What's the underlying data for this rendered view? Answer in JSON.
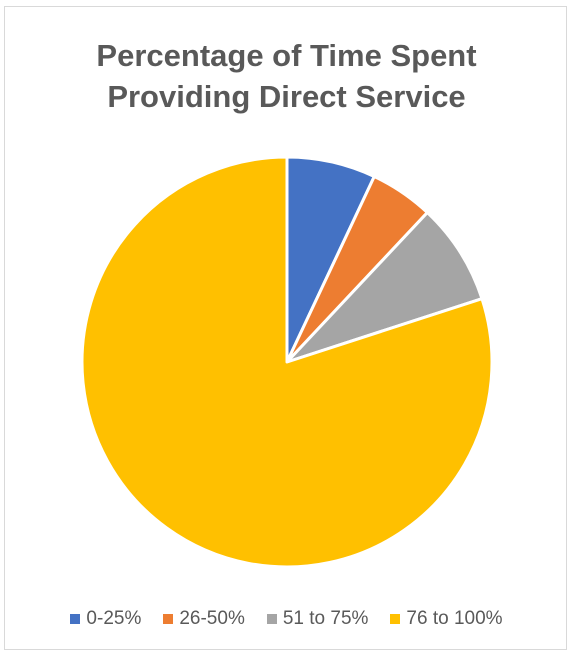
{
  "chart_data": {
    "type": "pie",
    "title": "Percentage of Time Spent Providing Direct Service",
    "title_lines": [
      "Percentage of Time Spent",
      "Providing Direct Service"
    ],
    "categories": [
      "0-25%",
      "26-50%",
      "51 to 75%",
      "76 to 100%"
    ],
    "values": [
      7,
      5,
      8,
      80
    ],
    "colors": [
      "#4472c4",
      "#ed7d31",
      "#a5a5a5",
      "#ffc000"
    ],
    "start_angle_deg": 0,
    "direction": "clockwise",
    "legend_position": "bottom",
    "data_labels": false
  }
}
